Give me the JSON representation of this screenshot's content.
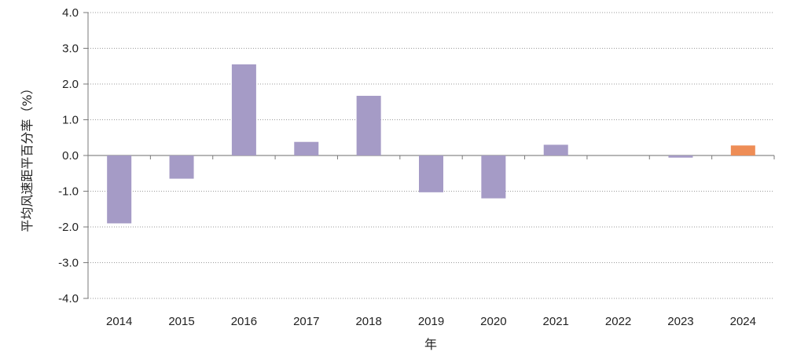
{
  "chart_data": {
    "type": "bar",
    "title": "",
    "xlabel": "年",
    "ylabel": "平均风速距平百分率（%）",
    "categories": [
      "2014",
      "2015",
      "2016",
      "2017",
      "2018",
      "2019",
      "2020",
      "2021",
      "2022",
      "2023",
      "2024"
    ],
    "values": [
      -1.9,
      -0.65,
      2.55,
      0.38,
      1.67,
      -1.03,
      -1.2,
      0.3,
      0.0,
      -0.06,
      0.28
    ],
    "ylim": [
      -4.0,
      4.0
    ],
    "ytick_step": 1.0,
    "ytick_labels": [
      "4.0",
      "3.0",
      "2.0",
      "1.0",
      "0.0",
      "-1.0",
      "-2.0",
      "-3.0",
      "-4.0"
    ],
    "grid": true,
    "legend": "none",
    "colors": {
      "bar": "#a59bc6",
      "highlight": "#ee8d56",
      "highlight_category": "2024"
    }
  }
}
